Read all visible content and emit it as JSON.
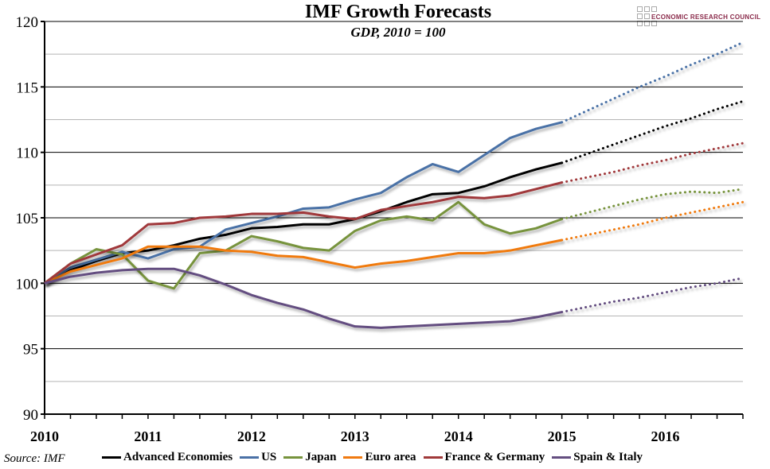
{
  "chart_data": {
    "type": "line",
    "title": "IMF Growth Forecasts",
    "subtitle": "GDP, 2010 = 100",
    "source": "Source: IMF",
    "logo_text": "ECONOMIC RESEARCH COUNCIL",
    "xlabel": "",
    "ylabel": "",
    "xlim": [
      2010,
      2016.75
    ],
    "ylim": [
      90,
      120
    ],
    "x_ticks": [
      "2010",
      "2011",
      "2012",
      "2013",
      "2014",
      "2015",
      "2016"
    ],
    "y_ticks": [
      "90",
      "95",
      "100",
      "105",
      "110",
      "115",
      "120"
    ],
    "grid": true,
    "legend_position": "bottom",
    "actual_x": [
      2010,
      2010.25,
      2010.5,
      2010.75,
      2011,
      2011.25,
      2011.5,
      2011.75,
      2012,
      2012.25,
      2012.5,
      2012.75,
      2013,
      2013.25,
      2013.5,
      2013.75,
      2014,
      2014.25,
      2014.5,
      2014.75,
      2015
    ],
    "forecast_x": [
      2015,
      2015.25,
      2015.5,
      2015.75,
      2016,
      2016.25,
      2016.5,
      2016.75
    ],
    "series": [
      {
        "name": "Advanced Economies",
        "color": "#000000",
        "actual": [
          100,
          101.0,
          101.7,
          102.3,
          102.5,
          102.9,
          103.4,
          103.7,
          104.2,
          104.3,
          104.5,
          104.5,
          104.9,
          105.5,
          106.2,
          106.8,
          106.9,
          107.4,
          108.1,
          108.7,
          109.2
        ],
        "forecast": [
          109.2,
          109.9,
          110.6,
          111.3,
          112.0,
          112.6,
          113.3,
          113.9
        ]
      },
      {
        "name": "US",
        "color": "#4a71a6",
        "actual": [
          100,
          101.2,
          101.8,
          102.4,
          101.9,
          102.6,
          102.8,
          104.1,
          104.6,
          105.1,
          105.7,
          105.8,
          106.4,
          106.9,
          108.1,
          109.1,
          108.5,
          109.8,
          111.1,
          111.8,
          112.3
        ],
        "forecast": [
          112.3,
          113.2,
          114.1,
          115.0,
          115.8,
          116.7,
          117.5,
          118.4
        ]
      },
      {
        "name": "Japan",
        "color": "#77933c",
        "actual": [
          100,
          101.5,
          102.6,
          102.2,
          100.2,
          99.6,
          102.3,
          102.5,
          103.6,
          103.2,
          102.7,
          102.5,
          104.0,
          104.8,
          105.1,
          104.8,
          106.2,
          104.5,
          103.8,
          104.2,
          104.9
        ],
        "forecast": [
          104.9,
          105.4,
          105.9,
          106.4,
          106.8,
          107.0,
          106.9,
          107.2
        ]
      },
      {
        "name": "Euro area",
        "color": "#f07a10",
        "actual": [
          100,
          100.9,
          101.4,
          101.9,
          102.8,
          102.8,
          102.8,
          102.5,
          102.4,
          102.1,
          102.0,
          101.6,
          101.2,
          101.5,
          101.7,
          102.0,
          102.3,
          102.3,
          102.5,
          102.9,
          103.3
        ],
        "forecast": [
          103.3,
          103.7,
          104.1,
          104.5,
          105.0,
          105.4,
          105.8,
          106.2
        ]
      },
      {
        "name": "France & Germany",
        "color": "#a0393a",
        "actual": [
          100,
          101.5,
          102.2,
          102.9,
          104.5,
          104.6,
          105.0,
          105.1,
          105.3,
          105.3,
          105.4,
          105.1,
          104.9,
          105.6,
          105.9,
          106.2,
          106.6,
          106.5,
          106.7,
          107.2,
          107.7
        ],
        "forecast": [
          107.7,
          108.1,
          108.5,
          109.0,
          109.4,
          109.9,
          110.3,
          110.7
        ]
      },
      {
        "name": "Spain & Italy",
        "color": "#644e80",
        "actual": [
          100,
          100.5,
          100.8,
          101.0,
          101.1,
          101.1,
          100.6,
          99.9,
          99.1,
          98.5,
          98.0,
          97.3,
          96.7,
          96.6,
          96.7,
          96.8,
          96.9,
          97.0,
          97.1,
          97.4,
          97.8
        ],
        "forecast": [
          97.8,
          98.2,
          98.6,
          98.9,
          99.3,
          99.7,
          100.0,
          100.4
        ]
      }
    ]
  }
}
